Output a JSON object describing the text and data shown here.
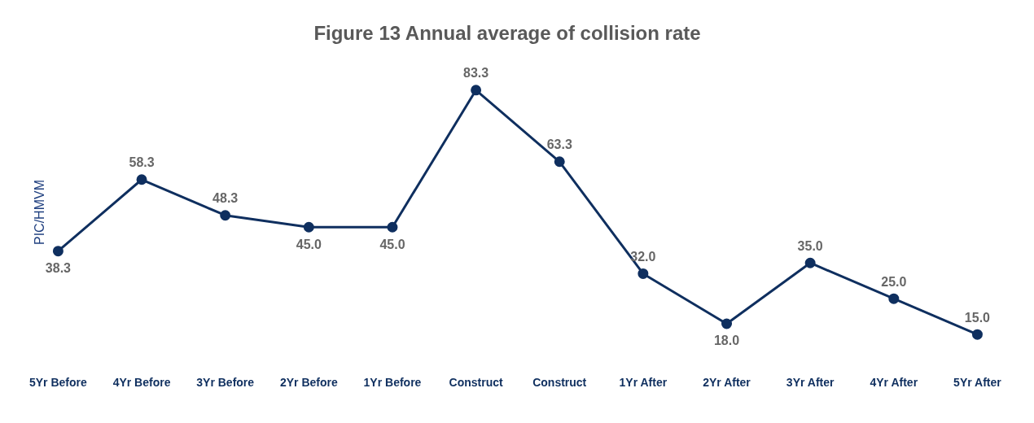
{
  "chart_data": {
    "type": "line",
    "title": "Figure 13 Annual average of collision rate",
    "ylabel": "PIC/HMVM",
    "categories": [
      "5Yr Before",
      "4Yr Before",
      "3Yr Before",
      "2Yr Before",
      "1Yr Before",
      "Construct",
      "Construct",
      "1Yr After",
      "2Yr After",
      "3Yr After",
      "4Yr After",
      "5Yr After"
    ],
    "series": [
      {
        "color": "#0f2f5f",
        "values": [
          38.3,
          58.3,
          48.3,
          45.0,
          45.0,
          83.3,
          63.3,
          32.0,
          18.0,
          35.0,
          25.0,
          15.0
        ],
        "value_labels": [
          "38.3",
          "58.3",
          "48.3",
          "45.0",
          "45.0",
          "83.3",
          "63.3",
          "32.0",
          "18.0",
          "35.0",
          "25.0",
          "15.0"
        ]
      }
    ],
    "grid": false,
    "legend": false,
    "marker": "circle",
    "line_style": "solid"
  }
}
